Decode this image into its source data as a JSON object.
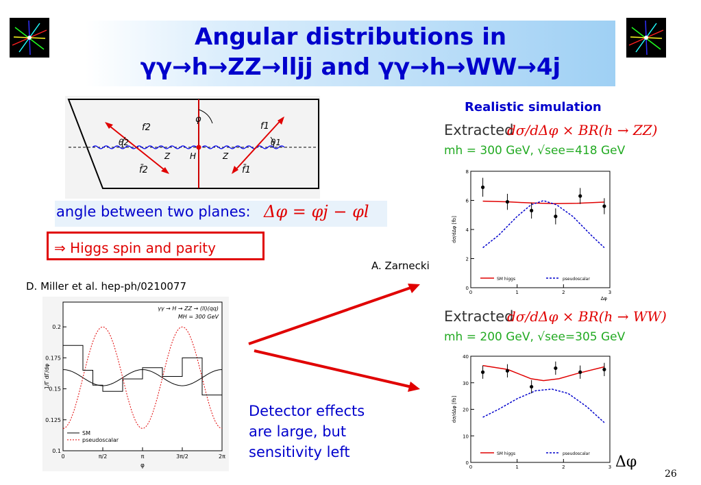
{
  "slide": {
    "title_line1": "Angular distributions in",
    "title_line2": "γγ→h→ZZ→lljj and γγ→h→WW→4j",
    "page_number": "26"
  },
  "left": {
    "angle_caption_text": "angle between two planes:",
    "angle_formula": "Δφ = φj − φl",
    "higgs_box": "⇒ Higgs spin and parity",
    "reference": "D. Miller et al. hep-ph/0210077",
    "detector_text_1": "Detector effects",
    "detector_text_2": "are large, but",
    "detector_text_3": "sensitivity left",
    "diagram_labels": {
      "phi": "φ",
      "f2": "f2",
      "f2bar": "f̄2",
      "f1": "f1",
      "f1bar": "f̄1",
      "theta2": "θ2",
      "theta1": "θ1",
      "Z_left": "Z",
      "H": "H",
      "Z_right": "Z"
    }
  },
  "right": {
    "realistic": "Realistic simulation",
    "author": "A. Zarnecki",
    "zz_extracted": "Extracted",
    "zz_formula": "dσ/dΔφ × BR(h → ZZ)",
    "zz_mass": "mh = 300 GeV, √see=418 GeV",
    "ww_extracted": "Extracted",
    "ww_formula": "dσ/dΔφ × BR(h → WW)",
    "ww_mass": "mh = 200 GeV, √see=305 GeV",
    "delta_phi": "Δφ"
  },
  "chart_data": [
    {
      "type": "line",
      "title": "γγ → H → ZZ → (ll)(qq)",
      "subtitle": "MH = 300 GeV",
      "xlabel": "φ",
      "ylabel": "1/Γ dΓ/dφ",
      "xlim": [
        0,
        6.283
      ],
      "ylim": [
        0.1,
        0.22
      ],
      "xticks": [
        "0",
        "π/2",
        "π",
        "3π/2",
        "2π"
      ],
      "yticks": [
        "0.1",
        "0.125",
        "0.15",
        "0.175",
        "0.2"
      ],
      "series": [
        {
          "name": "SM",
          "formula": "0.159 + 0.0065*cos(2φ)",
          "color": "#000000"
        },
        {
          "name": "pseudoscalar",
          "formula": "0.159 - 0.041*cos(2φ)",
          "color": "#e00000"
        },
        {
          "name": "",
          "kind": "histogram",
          "edges": [
            0,
            0.785,
            1.178,
            1.571,
            2.356,
            3.142,
            3.927,
            4.712,
            5.498,
            6.283
          ],
          "values": [
            0.185,
            0.165,
            0.153,
            0.148,
            0.158,
            0.167,
            0.16,
            0.175,
            0.145
          ],
          "color": "#000000"
        }
      ],
      "legend": "bottom-left"
    },
    {
      "type": "scatter",
      "title": "",
      "xlabel": "Δφ",
      "ylabel": "dσ/dΔφ [fb]",
      "xlim": [
        0,
        3
      ],
      "ylim": [
        0,
        8
      ],
      "xticks": [
        "0",
        "1",
        "2",
        "3"
      ],
      "yticks": [
        "0",
        "2",
        "4",
        "6",
        "8"
      ],
      "series": [
        {
          "name": "",
          "kind": "points",
          "x": [
            0.26,
            0.79,
            1.31,
            1.83,
            2.36,
            2.88
          ],
          "y": [
            6.9,
            5.9,
            5.3,
            4.9,
            6.3,
            5.6
          ],
          "err": [
            0.65,
            0.55,
            0.55,
            0.55,
            0.55,
            0.55
          ]
        },
        {
          "name": "SM higgs",
          "kind": "line",
          "x": [
            0.26,
            0.8,
            1.3,
            1.8,
            2.3,
            2.88
          ],
          "y": [
            5.95,
            5.9,
            5.82,
            5.78,
            5.8,
            5.88
          ],
          "color": "#e00000"
        },
        {
          "name": "pseudoscalar",
          "kind": "line",
          "x": [
            0.26,
            0.6,
            1.0,
            1.3,
            1.57,
            1.85,
            2.2,
            2.6,
            2.88
          ],
          "y": [
            2.75,
            3.6,
            4.9,
            5.7,
            5.98,
            5.7,
            4.9,
            3.6,
            2.75
          ],
          "color": "#0000cc"
        }
      ],
      "legend": "bottom"
    },
    {
      "type": "scatter",
      "title": "",
      "xlabel": "",
      "ylabel": "dσ/dΔφ [fb]",
      "xlim": [
        0,
        3
      ],
      "ylim": [
        0,
        40
      ],
      "xticks": [
        "0",
        "1",
        "2",
        "3"
      ],
      "yticks": [
        "0",
        "10",
        "20",
        "30",
        "40"
      ],
      "series": [
        {
          "name": "",
          "kind": "points",
          "x": [
            0.26,
            0.79,
            1.31,
            1.83,
            2.36,
            2.88
          ],
          "y": [
            34,
            34.5,
            28.5,
            35.5,
            34,
            35
          ],
          "err": [
            2.5,
            2.5,
            2.5,
            2.5,
            2.5,
            2.5
          ]
        },
        {
          "name": "SM higgs",
          "kind": "line",
          "x": [
            0.26,
            0.8,
            1.3,
            1.57,
            1.9,
            2.3,
            2.88
          ],
          "y": [
            36.5,
            35,
            31.5,
            30.8,
            31.5,
            33.5,
            36
          ],
          "color": "#e00000"
        },
        {
          "name": "pseudoscalar",
          "kind": "line",
          "x": [
            0.26,
            0.6,
            1.0,
            1.4,
            1.75,
            2.1,
            2.5,
            2.88
          ],
          "y": [
            17,
            20,
            24,
            27,
            27.6,
            26,
            21,
            15
          ],
          "color": "#0000cc"
        }
      ],
      "legend": "bottom"
    }
  ]
}
